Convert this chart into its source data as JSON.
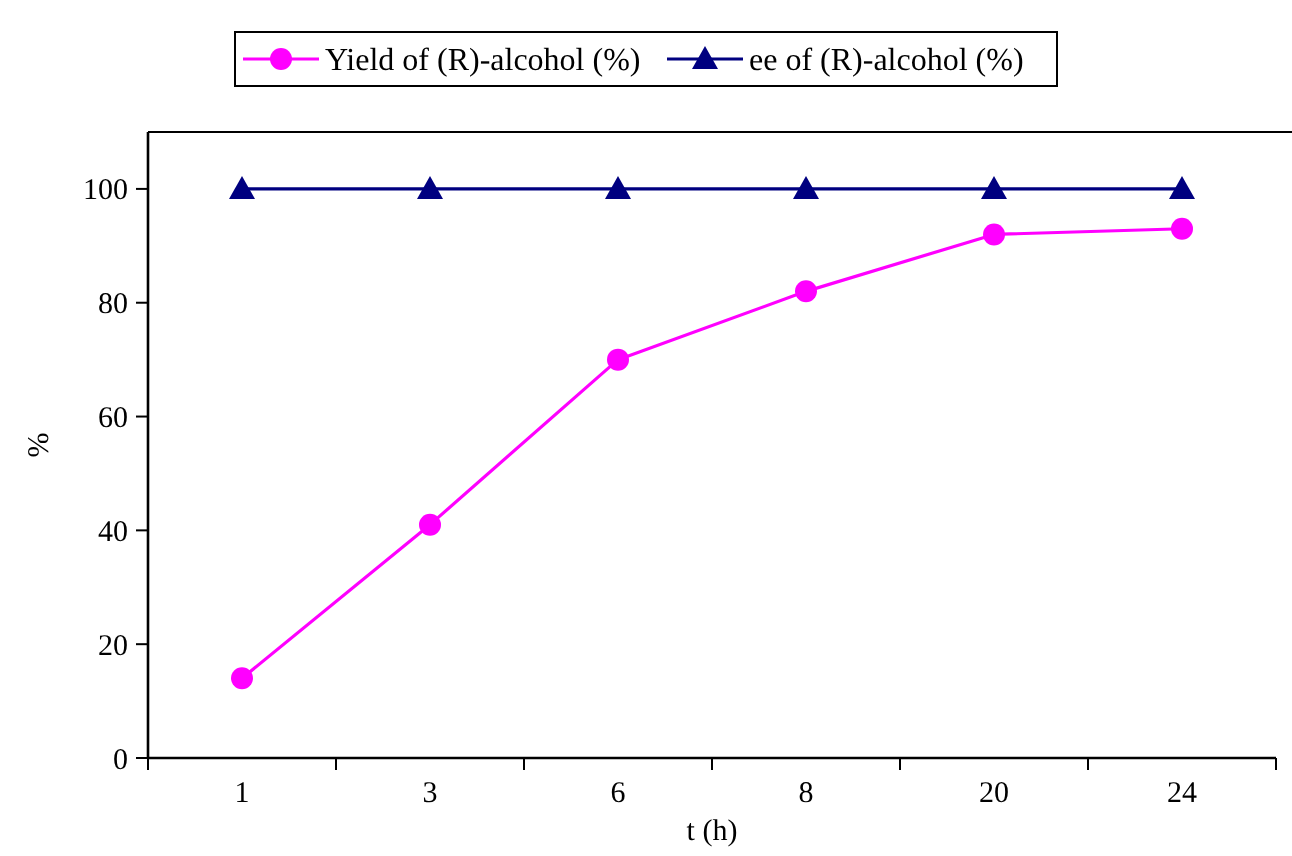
{
  "chart_data": {
    "type": "line",
    "xlabel": "t (h)",
    "ylabel": "%",
    "categories": [
      "1",
      "3",
      "6",
      "8",
      "20",
      "24"
    ],
    "series": [
      {
        "name": "Yield of (R)-alcohol (%)",
        "color": "#ff00ff",
        "marker": "circle",
        "values": [
          14,
          41,
          70,
          82,
          92,
          93
        ]
      },
      {
        "name": "ee of (R)-alcohol (%)",
        "color": "#000080",
        "marker": "triangle",
        "values": [
          100,
          100,
          100,
          100,
          100,
          100
        ]
      }
    ],
    "ylim": [
      0,
      110
    ],
    "yticks": [
      0,
      20,
      40,
      60,
      80,
      100
    ],
    "grid": false,
    "legend": "top",
    "line_style": "solid"
  }
}
